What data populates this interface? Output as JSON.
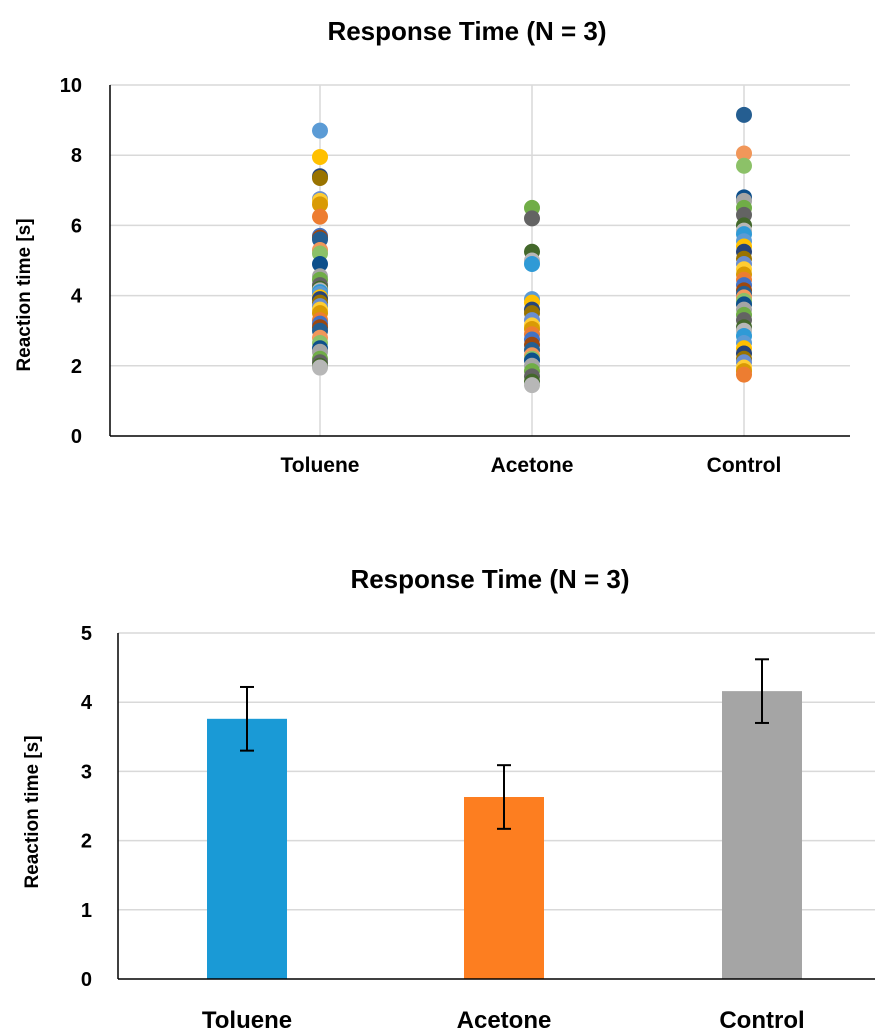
{
  "chart_data": [
    {
      "type": "scatter",
      "title": "Response Time (N = 3)",
      "ylabel": "Reaction time [s]",
      "xlabel": "",
      "categories": [
        "Toluene",
        "Acetone",
        "Control"
      ],
      "ylim": [
        0,
        10
      ],
      "yticks": [
        "0",
        "2",
        "4",
        "6",
        "8",
        "10"
      ],
      "grid": true,
      "legend": "none",
      "palette": [
        "#5b9bd5",
        "#ed7d31",
        "#a5a5a5",
        "#ffc000",
        "#4472c4",
        "#70ad47",
        "#264478",
        "#9e480e",
        "#636363",
        "#997300",
        "#255e91",
        "#43682b",
        "#698ed0",
        "#f1975a",
        "#b7b7b7",
        "#ffcd33",
        "#8cc168",
        "#2f9ad6",
        "#d99a05",
        "#0d4f8b"
      ],
      "points": [
        {
          "category": "Toluene",
          "y": [
            8.7,
            7.95,
            7.4,
            7.35,
            6.75,
            6.7,
            6.6,
            6.25,
            5.7,
            5.65,
            5.6,
            5.3,
            5.2,
            4.9,
            4.55,
            4.45,
            4.3,
            4.2,
            4.15,
            4.1,
            4.05,
            3.95,
            3.9,
            3.8,
            3.7,
            3.6,
            3.5,
            3.3,
            3.2,
            3.1,
            3.0,
            2.8,
            2.65,
            2.5,
            2.4,
            2.2,
            2.1,
            2.0,
            1.95
          ]
        },
        {
          "category": "Acetone",
          "y": [
            6.5,
            6.2,
            5.25,
            5.0,
            4.9,
            3.9,
            3.8,
            3.6,
            3.5,
            3.3,
            3.15,
            3.05,
            2.9,
            2.75,
            2.6,
            2.45,
            2.3,
            2.2,
            2.15,
            2.0,
            1.85,
            1.7,
            1.55,
            1.45
          ]
        },
        {
          "category": "Control",
          "y": [
            9.15,
            8.05,
            7.7,
            6.8,
            6.7,
            6.5,
            6.3,
            6.0,
            5.85,
            5.75,
            5.55,
            5.4,
            5.25,
            5.05,
            4.9,
            4.75,
            4.6,
            4.45,
            4.3,
            4.15,
            4.05,
            3.95,
            3.85,
            3.75,
            3.6,
            3.45,
            3.3,
            3.1,
            3.0,
            2.85,
            2.65,
            2.5,
            2.35,
            2.2,
            2.1,
            1.95,
            1.85,
            1.75
          ]
        }
      ]
    },
    {
      "type": "bar",
      "title": "Response Time (N = 3)",
      "ylabel": "Reaction time [s]",
      "xlabel": "",
      "categories": [
        "Toluene",
        "Acetone",
        "Control"
      ],
      "values": [
        3.76,
        2.63,
        4.16
      ],
      "error": [
        0.46,
        0.46,
        0.46
      ],
      "colors": [
        "#1a9ad6",
        "#fd7e20",
        "#a5a5a5"
      ],
      "ylim": [
        0,
        5
      ],
      "yticks": [
        "0",
        "1",
        "2",
        "3",
        "4",
        "5"
      ],
      "grid": true,
      "legend": "none"
    }
  ]
}
